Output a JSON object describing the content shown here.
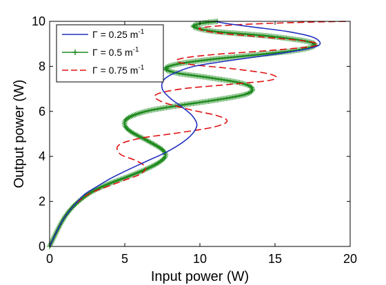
{
  "chart_data": {
    "type": "line",
    "xlabel": "Input power (W)",
    "ylabel": "Output power (W)",
    "xlim": [
      0,
      20
    ],
    "ylim": [
      0,
      10
    ],
    "xticks": [
      0,
      5,
      10,
      15,
      20
    ],
    "yticks": [
      0,
      2,
      4,
      6,
      8,
      10
    ],
    "grid": false,
    "legend_position": "top-left",
    "series": [
      {
        "name": "Γ = 0.25 m⁻¹",
        "label_base": "Γ = 0.25 m",
        "label_sup": "-1",
        "color": "#1f2fbf",
        "style": "solid",
        "marker": "none",
        "x": [
          0,
          0.5,
          1.0,
          1.6,
          2.3,
          3.0,
          4.0,
          5.2,
          6.5,
          7.8,
          8.8,
          9.5,
          9.8,
          9.5,
          8.8,
          8.0,
          7.5,
          7.6,
          8.3,
          9.6,
          11.4,
          13.5,
          15.6,
          17.3,
          18.0,
          17.5,
          15.8,
          13.5,
          11.8,
          11.0
        ],
        "y": [
          0,
          0.7,
          1.3,
          1.8,
          2.3,
          2.6,
          3.0,
          3.4,
          3.8,
          4.2,
          4.6,
          5.0,
          5.4,
          5.8,
          6.2,
          6.6,
          7.0,
          7.4,
          7.7,
          8.0,
          8.2,
          8.4,
          8.6,
          8.8,
          9.0,
          9.3,
          9.55,
          9.75,
          9.9,
          10.0
        ]
      },
      {
        "name": "Γ = 0.5 m⁻¹",
        "label_base": "Γ = 0.5 m",
        "label_sup": "-1",
        "color": "#1f8a1f",
        "style": "solid",
        "marker": "+",
        "x": [
          0,
          0.5,
          1.0,
          1.6,
          2.3,
          3.0,
          4.0,
          5.2,
          6.3,
          7.2,
          7.7,
          7.5,
          6.5,
          5.4,
          5.0,
          5.2,
          6.4,
          8.5,
          11.0,
          13.0,
          13.5,
          12.8,
          10.6,
          8.5,
          7.7,
          8.5,
          10.6,
          13.6,
          16.3,
          17.6,
          17.2,
          14.5,
          11.0,
          9.6,
          10.0,
          11.2
        ],
        "y": [
          0,
          0.7,
          1.3,
          1.8,
          2.2,
          2.5,
          2.8,
          3.1,
          3.4,
          3.7,
          4.0,
          4.3,
          4.7,
          5.1,
          5.4,
          5.7,
          6.0,
          6.25,
          6.5,
          6.75,
          7.0,
          7.25,
          7.5,
          7.7,
          7.9,
          8.1,
          8.3,
          8.5,
          8.7,
          8.9,
          9.1,
          9.35,
          9.55,
          9.75,
          9.9,
          10.0
        ]
      },
      {
        "name": "Γ = 0.75 m⁻¹",
        "label_base": "Γ = 0.75 m",
        "label_sup": "-1",
        "color": "#e01010",
        "style": "dashed",
        "marker": "none",
        "x": [
          0,
          0.5,
          1.0,
          1.6,
          2.3,
          3.0,
          4.0,
          5.0,
          6.0,
          6.4,
          5.8,
          4.7,
          4.6,
          6.0,
          8.6,
          10.9,
          11.8,
          11.2,
          9.2,
          7.4,
          7.1,
          8.8,
          12.0,
          14.8,
          14.7,
          12.1,
          9.2,
          8.5,
          10.5,
          14.5,
          17.6,
          17.3,
          14.2,
          11.0,
          10.0,
          12.5,
          16.5,
          19.8
        ],
        "y": [
          0,
          0.7,
          1.3,
          1.8,
          2.2,
          2.45,
          2.7,
          2.95,
          3.2,
          3.5,
          3.8,
          4.1,
          4.5,
          4.8,
          5.05,
          5.3,
          5.55,
          5.8,
          6.1,
          6.45,
          6.75,
          7.0,
          7.2,
          7.4,
          7.65,
          7.9,
          8.1,
          8.3,
          8.5,
          8.7,
          8.9,
          9.1,
          9.3,
          9.5,
          9.7,
          9.85,
          9.95,
          10.0
        ]
      }
    ]
  }
}
